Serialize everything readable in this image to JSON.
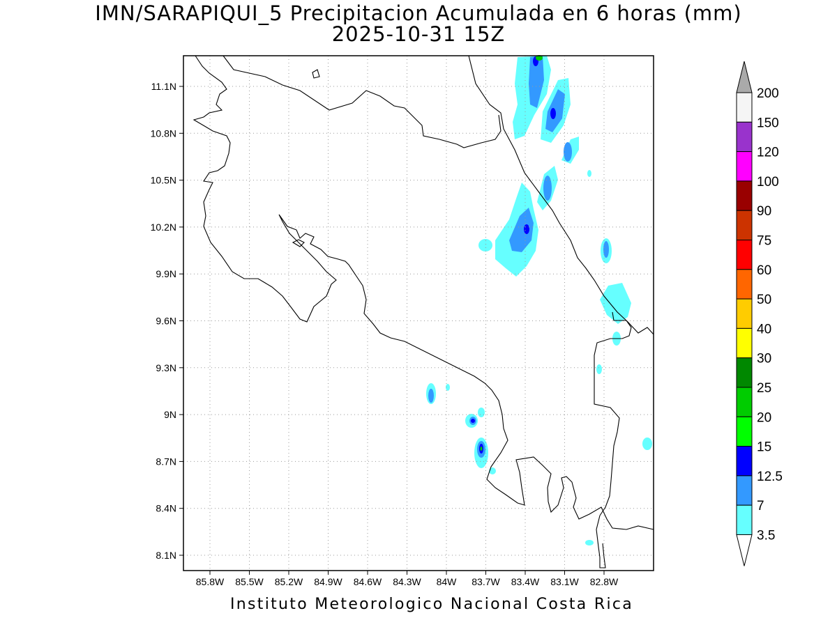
{
  "title_line1": "IMN/SARAPIQUI_5 Precipitacion Acumulada en 6 horas (mm)",
  "title_line2": "2025-10-31 15Z",
  "footer": "Instituto Meteorologico Nacional Costa Rica",
  "map": {
    "lon_ticks": [
      "85.8W",
      "85.5W",
      "85.2W",
      "84.9W",
      "84.6W",
      "84.3W",
      "84W",
      "83.7W",
      "83.4W",
      "83.1W",
      "82.8W"
    ],
    "lat_ticks": [
      "11.1N",
      "10.8N",
      "10.5N",
      "10.2N",
      "9.9N",
      "9.6N",
      "9.3N",
      "9N",
      "8.7N",
      "8.4N",
      "8.1N"
    ],
    "grid": "dotted"
  },
  "colorbar": {
    "levels": [
      "3.5",
      "7",
      "12.5",
      "15",
      "20",
      "25",
      "30",
      "40",
      "50",
      "60",
      "75",
      "90",
      "100",
      "120",
      "150",
      "200"
    ],
    "colors": [
      "#ffffff",
      "#66ffff",
      "#3399ff",
      "#0000ff",
      "#00ff00",
      "#00cc00",
      "#008800",
      "#ffff00",
      "#ffcc00",
      "#ff6600",
      "#ff0000",
      "#cc3300",
      "#990000",
      "#ff00ff",
      "#9933cc",
      "#f5f5f5",
      "#aaaaaa"
    ]
  }
}
